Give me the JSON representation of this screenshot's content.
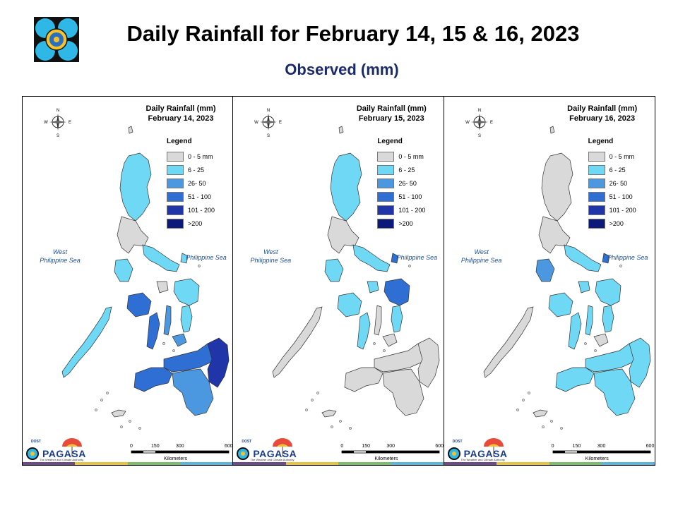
{
  "header": {
    "title": "Daily Rainfall for February 14, 15 & 16, 2023",
    "subtitle": "Observed (mm)",
    "logo_icon": "pagasa-seal-icon"
  },
  "legend": {
    "title": "Legend",
    "items": [
      {
        "label": "0 - 5 mm",
        "color": "#d9d9d9"
      },
      {
        "label": "6 - 25",
        "color": "#6fd8f5"
      },
      {
        "label": "26- 50",
        "color": "#4b98e0"
      },
      {
        "label": "51 - 100",
        "color": "#2f6fd4"
      },
      {
        "label": "101 - 200",
        "color": "#1f35a8"
      },
      {
        "label": ">200",
        "color": "#0b1a7a"
      }
    ]
  },
  "panels": [
    {
      "title": "Daily Rainfall (mm)\nFebruary 14, 2023",
      "scheme": "feb14"
    },
    {
      "title": "Daily Rainfall (mm)\nFebruary 15, 2023",
      "scheme": "feb15"
    },
    {
      "title": "Daily Rainfall (mm)\nFebruary 16, 2023",
      "scheme": "feb16"
    }
  ],
  "labels": {
    "west_sea": "West\nPhilippine Sea",
    "east_sea": "Philippine Sea",
    "scale_ticks": [
      "0",
      "150",
      "300",
      "600"
    ],
    "scale_units": "Kilometers",
    "compass": [
      "N",
      "E",
      "S",
      "W"
    ],
    "pagasa": "PAGASA",
    "pagasa_dost": "DOST",
    "pagasa_sub": "The Weather and Climate Authority"
  },
  "colors": {
    "land": "#d9d9d9",
    "stripe": [
      "#6d4a8a",
      "#e8c440",
      "#7bbf6a",
      "#5ab5e0"
    ]
  }
}
